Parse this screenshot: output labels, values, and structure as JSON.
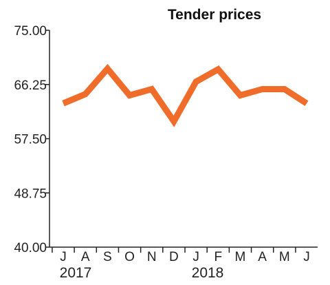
{
  "chart_data": {
    "type": "line",
    "title": "Tender prices",
    "xlabel": "",
    "ylabel": "",
    "ylim": [
      40.0,
      75.0
    ],
    "yticks": [
      "75.00",
      "66.25",
      "57.50",
      "48.75",
      "40.00"
    ],
    "ytick_values": [
      75.0,
      66.25,
      57.5,
      48.75,
      40.0
    ],
    "categories": [
      "J",
      "A",
      "S",
      "O",
      "N",
      "D",
      "J",
      "F",
      "M",
      "A",
      "M",
      "J"
    ],
    "year_labels": [
      {
        "label": "2017",
        "category_index": 0
      },
      {
        "label": "2018",
        "category_index": 6
      }
    ],
    "series": [
      {
        "values": [
          63.2,
          64.7,
          68.8,
          64.5,
          65.5,
          60.3,
          66.7,
          68.7,
          64.5,
          65.5,
          65.5,
          63.2
        ],
        "color": "#ef6c2b"
      }
    ],
    "grid": false,
    "legend": "none"
  }
}
